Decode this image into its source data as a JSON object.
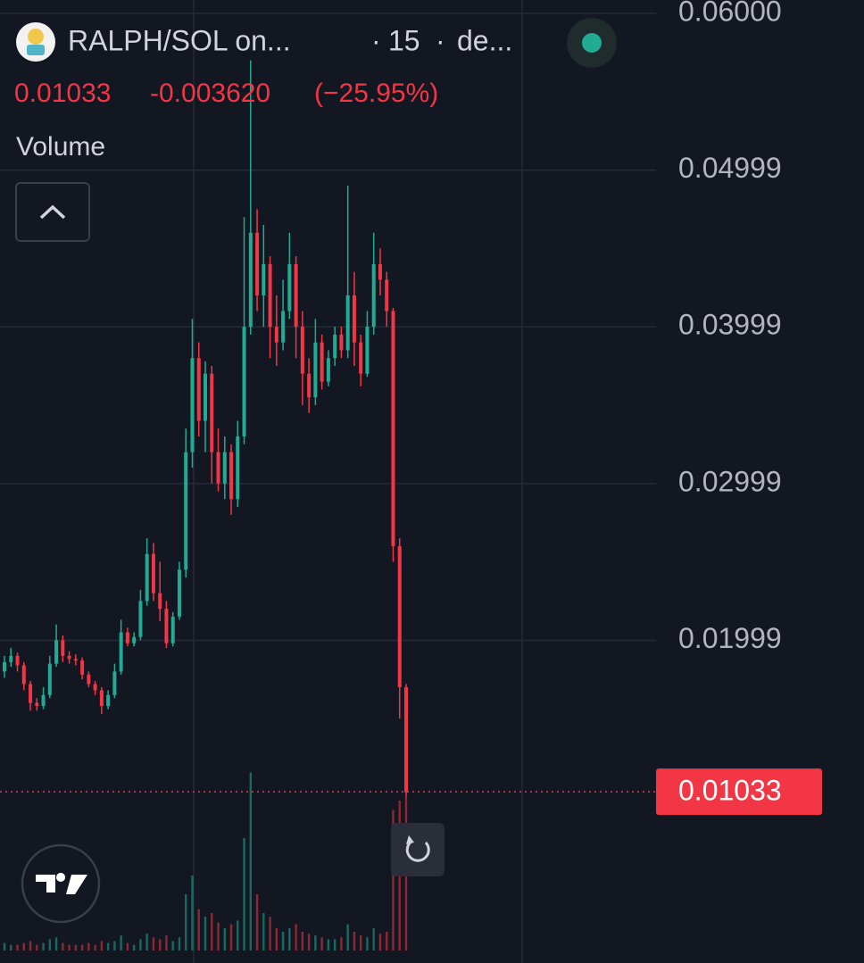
{
  "chart_data": {
    "type": "candlestick",
    "symbol": "RALPH/SOL on...",
    "header_separator": "·",
    "interval": "15",
    "source": "de...",
    "last_price": 0.01033,
    "change": {
      "value": -0.00362,
      "label": "-0.003620"
    },
    "change_percent": {
      "value": -25.95,
      "label": "(−25.95%)"
    },
    "volume_label": "Volume",
    "up_color": "#22ab94",
    "down_color": "#f23645",
    "grid": true,
    "ylim": [
      -0.0006,
      0.06085
    ],
    "yticks": [
      {
        "value": 0.06,
        "label": "0.06000"
      },
      0.04999,
      0.03999,
      0.02999,
      0.01999
    ],
    "open": [
      0.018,
      0.0186,
      0.019,
      0.0184,
      0.0172,
      0.016,
      0.0158,
      0.0165,
      0.0185,
      0.02,
      0.019,
      0.0188,
      0.0187,
      0.0178,
      0.0172,
      0.0168,
      0.0158,
      0.0165,
      0.018,
      0.0205,
      0.0198,
      0.0202,
      0.0225,
      0.0255,
      0.023,
      0.022,
      0.0198,
      0.0215,
      0.0245,
      0.032,
      0.038,
      0.034,
      0.037,
      0.032,
      0.03,
      0.032,
      0.029,
      0.033,
      0.04,
      0.046,
      0.042,
      0.044,
      0.04,
      0.039,
      0.041,
      0.044,
      0.04,
      0.037,
      0.0355,
      0.039,
      0.0365,
      0.038,
      0.0395,
      0.0385,
      0.042,
      0.039,
      0.037,
      0.04,
      0.044,
      0.043,
      0.041,
      0.026,
      0.017
    ],
    "high": [
      0.019,
      0.0195,
      0.0192,
      0.0186,
      0.0174,
      0.0163,
      0.017,
      0.019,
      0.021,
      0.0203,
      0.0193,
      0.0191,
      0.0189,
      0.018,
      0.0174,
      0.017,
      0.0168,
      0.0185,
      0.0213,
      0.0208,
      0.0205,
      0.0232,
      0.0265,
      0.0262,
      0.025,
      0.0225,
      0.0218,
      0.025,
      0.0335,
      0.0405,
      0.039,
      0.0378,
      0.0375,
      0.0335,
      0.033,
      0.0325,
      0.034,
      0.047,
      0.057,
      0.0475,
      0.0465,
      0.0445,
      0.042,
      0.043,
      0.046,
      0.0445,
      0.041,
      0.038,
      0.0405,
      0.0395,
      0.0385,
      0.04,
      0.04,
      0.049,
      0.0435,
      0.0395,
      0.041,
      0.046,
      0.045,
      0.0435,
      0.0412,
      0.0265,
      0.0172
    ],
    "low": [
      0.0176,
      0.0183,
      0.018,
      0.0168,
      0.0155,
      0.0155,
      0.0156,
      0.0163,
      0.0183,
      0.0186,
      0.0185,
      0.0184,
      0.0175,
      0.017,
      0.0165,
      0.0153,
      0.0156,
      0.0163,
      0.0178,
      0.0196,
      0.0196,
      0.02,
      0.0222,
      0.0225,
      0.0212,
      0.0195,
      0.0196,
      0.0213,
      0.024,
      0.031,
      0.033,
      0.032,
      0.03,
      0.0295,
      0.029,
      0.028,
      0.0285,
      0.0325,
      0.0395,
      0.041,
      0.04,
      0.038,
      0.0375,
      0.0385,
      0.0405,
      0.038,
      0.035,
      0.0345,
      0.035,
      0.036,
      0.0362,
      0.0375,
      0.038,
      0.038,
      0.0375,
      0.0362,
      0.0368,
      0.0395,
      0.042,
      0.04,
      0.025,
      0.015,
      0.01
    ],
    "close": [
      0.0186,
      0.019,
      0.0184,
      0.0172,
      0.016,
      0.0158,
      0.0165,
      0.0185,
      0.02,
      0.019,
      0.0188,
      0.0187,
      0.0178,
      0.0172,
      0.0168,
      0.0158,
      0.0165,
      0.018,
      0.0205,
      0.0198,
      0.0202,
      0.0225,
      0.0255,
      0.023,
      0.022,
      0.0198,
      0.0215,
      0.0245,
      0.032,
      0.038,
      0.034,
      0.037,
      0.032,
      0.03,
      0.032,
      0.029,
      0.033,
      0.04,
      0.046,
      0.042,
      0.044,
      0.04,
      0.039,
      0.041,
      0.044,
      0.04,
      0.037,
      0.0355,
      0.039,
      0.0365,
      0.038,
      0.0395,
      0.0385,
      0.042,
      0.039,
      0.037,
      0.04,
      0.044,
      0.043,
      0.041,
      0.026,
      0.017,
      0.0103
    ],
    "volume_lim": [
      0,
      100
    ],
    "volume": [
      4,
      3,
      3,
      4,
      5,
      3,
      4,
      6,
      7,
      4,
      3,
      3,
      3,
      4,
      3,
      5,
      4,
      5,
      8,
      4,
      3,
      6,
      9,
      7,
      6,
      8,
      5,
      7,
      30,
      40,
      22,
      18,
      20,
      15,
      12,
      14,
      16,
      60,
      95,
      30,
      20,
      18,
      12,
      10,
      12,
      14,
      10,
      9,
      8,
      7,
      6,
      6,
      7,
      14,
      10,
      8,
      7,
      12,
      9,
      10,
      75,
      80,
      82
    ]
  }
}
